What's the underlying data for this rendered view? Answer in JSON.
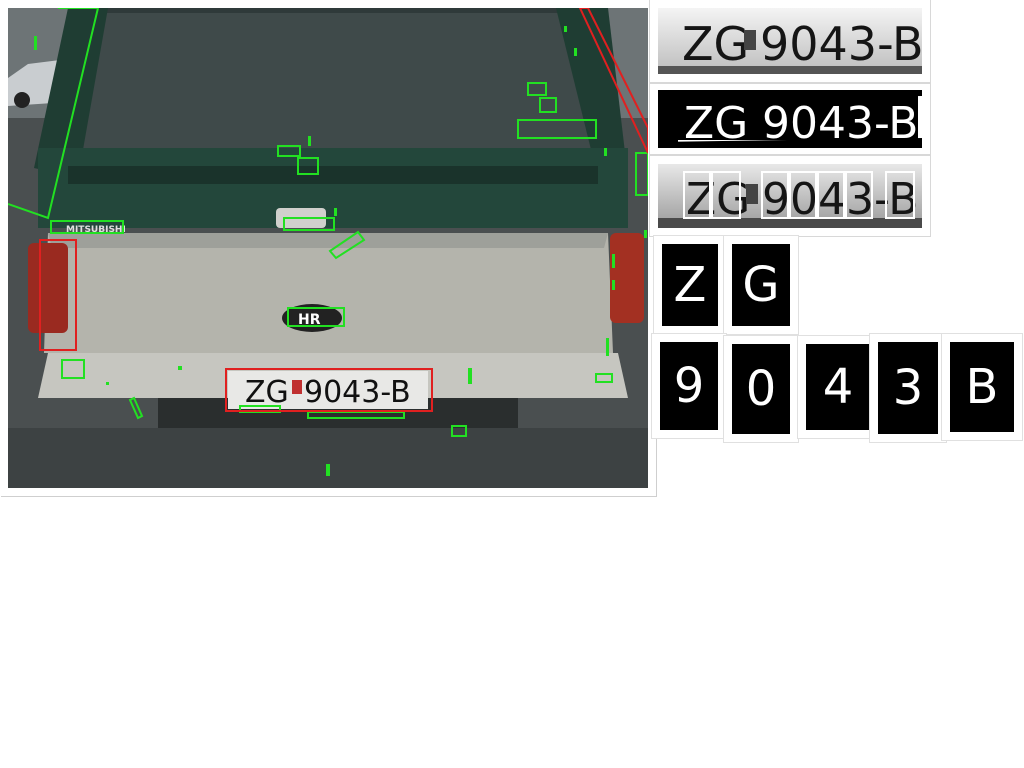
{
  "photo": {
    "badge_text": "MITSUBISHI",
    "emblem_text": "HR",
    "plate": {
      "prefix": "ZG",
      "number": "9043-B"
    }
  },
  "stages": [
    {
      "name": "grayscale",
      "prefix": "ZG",
      "number": "9043-B"
    },
    {
      "name": "binarized",
      "prefix": "ZG",
      "number": "9043-B"
    },
    {
      "name": "segmented",
      "prefix": "ZG",
      "number": "9043-B"
    }
  ],
  "characters": [
    "Z",
    "G",
    "9",
    "0",
    "4",
    "3",
    "B"
  ],
  "colors": {
    "candidate_box": "#22e022",
    "rejected_box": "#e02020",
    "detected_plate": "#e02020",
    "car_body": "#22443a",
    "tailgate": "#b8b8b0"
  }
}
